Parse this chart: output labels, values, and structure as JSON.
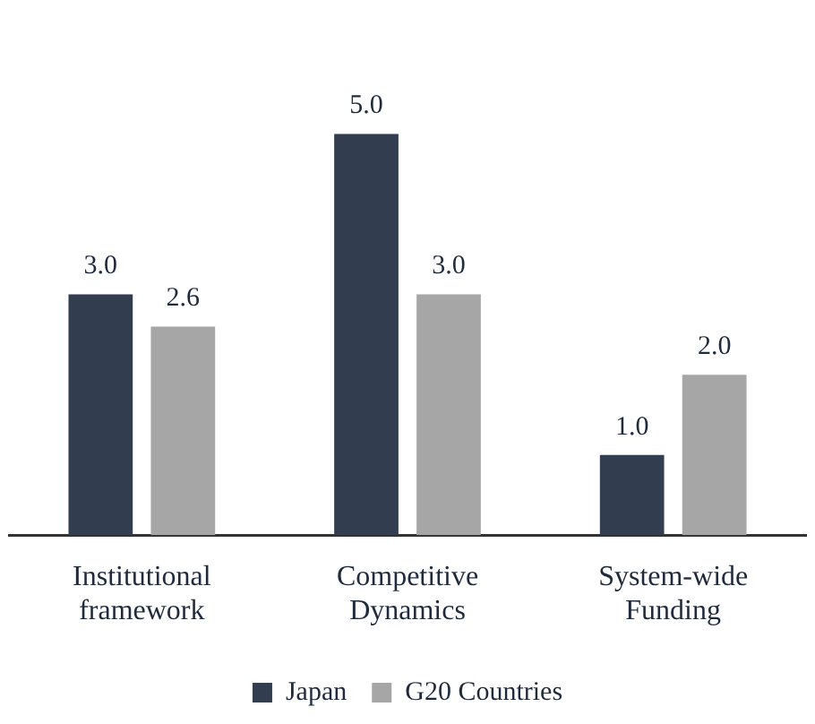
{
  "chart_data": {
    "type": "bar",
    "categories": [
      "Institutional framework",
      "Competitive Dynamics",
      "System-wide Funding"
    ],
    "series": [
      {
        "name": "Japan",
        "color": "#333d50",
        "values": [
          3,
          5,
          1
        ],
        "value_labels": [
          "3.0",
          "5.0",
          "1.0"
        ]
      },
      {
        "name": "G20 Countries",
        "color": "#a6a6a6",
        "values": [
          2.6,
          3,
          2
        ],
        "value_labels": [
          "2.6",
          "3.0",
          "2.0"
        ]
      }
    ],
    "legend": "bottom",
    "grid": false
  }
}
